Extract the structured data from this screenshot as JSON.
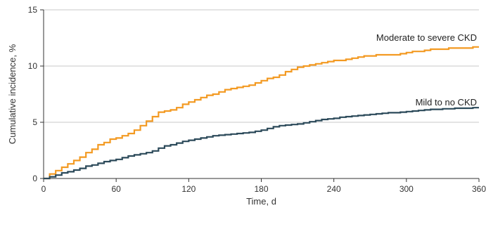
{
  "chart_data": {
    "type": "line",
    "xlabel": "Time, d",
    "ylabel": "Cumulative incidence, %",
    "xlim": [
      0,
      360
    ],
    "ylim": [
      0,
      15
    ],
    "xticks": [
      0,
      60,
      120,
      180,
      240,
      300,
      360
    ],
    "yticks": [
      0,
      5,
      10,
      15
    ],
    "grid": true,
    "series": [
      {
        "name": "Moderate to severe CKD",
        "color": "#f39a22",
        "x": [
          0,
          5,
          10,
          15,
          20,
          25,
          30,
          35,
          40,
          45,
          50,
          55,
          60,
          65,
          70,
          75,
          80,
          85,
          90,
          95,
          100,
          105,
          110,
          115,
          120,
          125,
          130,
          135,
          140,
          145,
          150,
          155,
          160,
          165,
          170,
          175,
          180,
          185,
          190,
          195,
          200,
          205,
          210,
          215,
          220,
          225,
          230,
          235,
          240,
          245,
          250,
          255,
          260,
          265,
          270,
          275,
          280,
          285,
          290,
          295,
          300,
          305,
          310,
          315,
          320,
          325,
          330,
          335,
          340,
          345,
          350,
          355,
          360
        ],
        "y": [
          0,
          0.4,
          0.7,
          1.0,
          1.3,
          1.6,
          1.9,
          2.3,
          2.6,
          3.0,
          3.2,
          3.5,
          3.6,
          3.8,
          4.0,
          4.3,
          4.7,
          5.1,
          5.5,
          5.9,
          6.0,
          6.1,
          6.3,
          6.6,
          6.8,
          7.0,
          7.2,
          7.4,
          7.5,
          7.7,
          7.9,
          8.0,
          8.1,
          8.2,
          8.3,
          8.5,
          8.7,
          8.9,
          9.0,
          9.2,
          9.5,
          9.7,
          9.9,
          10.0,
          10.1,
          10.2,
          10.3,
          10.4,
          10.5,
          10.5,
          10.6,
          10.7,
          10.8,
          10.9,
          10.9,
          11.0,
          11.0,
          11.0,
          11.0,
          11.1,
          11.2,
          11.3,
          11.3,
          11.4,
          11.5,
          11.5,
          11.5,
          11.6,
          11.6,
          11.6,
          11.6,
          11.7,
          11.7
        ]
      },
      {
        "name": "Mild to no CKD",
        "color": "#2c4a5a",
        "x": [
          0,
          5,
          10,
          15,
          20,
          25,
          30,
          35,
          40,
          45,
          50,
          55,
          60,
          65,
          70,
          75,
          80,
          85,
          90,
          95,
          100,
          105,
          110,
          115,
          120,
          125,
          130,
          135,
          140,
          145,
          150,
          155,
          160,
          165,
          170,
          175,
          180,
          185,
          190,
          195,
          200,
          205,
          210,
          215,
          220,
          225,
          230,
          235,
          240,
          245,
          250,
          255,
          260,
          265,
          270,
          275,
          280,
          285,
          290,
          295,
          300,
          305,
          310,
          315,
          320,
          325,
          330,
          335,
          340,
          345,
          350,
          355,
          360
        ],
        "y": [
          0,
          0.15,
          0.3,
          0.5,
          0.6,
          0.75,
          0.9,
          1.1,
          1.2,
          1.35,
          1.5,
          1.6,
          1.7,
          1.85,
          2.0,
          2.1,
          2.2,
          2.3,
          2.45,
          2.7,
          2.9,
          3.0,
          3.15,
          3.3,
          3.4,
          3.5,
          3.6,
          3.7,
          3.8,
          3.85,
          3.9,
          3.95,
          4.0,
          4.05,
          4.1,
          4.2,
          4.3,
          4.45,
          4.6,
          4.7,
          4.75,
          4.8,
          4.85,
          4.95,
          5.05,
          5.15,
          5.25,
          5.3,
          5.35,
          5.45,
          5.5,
          5.55,
          5.6,
          5.65,
          5.7,
          5.75,
          5.8,
          5.85,
          5.85,
          5.9,
          5.95,
          6.0,
          6.05,
          6.1,
          6.15,
          6.15,
          6.2,
          6.2,
          6.25,
          6.25,
          6.25,
          6.3,
          6.3
        ]
      }
    ]
  }
}
